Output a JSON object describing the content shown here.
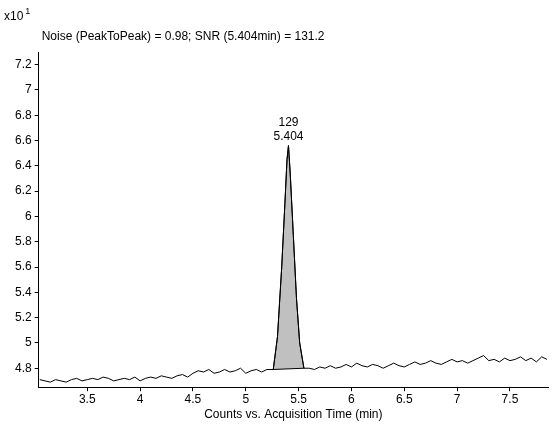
{
  "chart_data": {
    "type": "line",
    "title": "Noise (PeakToPeak) = 0.98; SNR (5.404min) = 131.2",
    "x_label": "Counts vs. Acquisition Time (min)",
    "y_multiplier": {
      "base": "x10",
      "exponent": "1"
    },
    "color": "#000000",
    "x": [
      3.05,
      3.1,
      3.15,
      3.2,
      3.25,
      3.3,
      3.35,
      3.4,
      3.45,
      3.5,
      3.55,
      3.6,
      3.65,
      3.7,
      3.75,
      3.8,
      3.85,
      3.9,
      3.95,
      4.0,
      4.05,
      4.1,
      4.15,
      4.2,
      4.25,
      4.3,
      4.35,
      4.4,
      4.45,
      4.5,
      4.55,
      4.6,
      4.65,
      4.7,
      4.75,
      4.8,
      4.85,
      4.9,
      4.95,
      5.0,
      5.05,
      5.1,
      5.15,
      5.2,
      5.26,
      5.3,
      5.34,
      5.37,
      5.39,
      5.404,
      5.42,
      5.45,
      5.48,
      5.51,
      5.55,
      5.6,
      5.65,
      5.7,
      5.75,
      5.8,
      5.85,
      5.9,
      5.95,
      6.0,
      6.05,
      6.1,
      6.15,
      6.2,
      6.25,
      6.3,
      6.35,
      6.4,
      6.45,
      6.5,
      6.55,
      6.6,
      6.65,
      6.7,
      6.75,
      6.8,
      6.85,
      6.9,
      6.95,
      7.0,
      7.05,
      7.1,
      7.15,
      7.2,
      7.25,
      7.3,
      7.35,
      7.4,
      7.45,
      7.5,
      7.55,
      7.6,
      7.65,
      7.7,
      7.75,
      7.8,
      7.85
    ],
    "values": [
      4.71,
      4.7,
      4.69,
      4.71,
      4.7,
      4.69,
      4.71,
      4.72,
      4.7,
      4.71,
      4.72,
      4.71,
      4.73,
      4.72,
      4.7,
      4.71,
      4.72,
      4.71,
      4.73,
      4.7,
      4.72,
      4.73,
      4.72,
      4.74,
      4.73,
      4.72,
      4.74,
      4.75,
      4.73,
      4.76,
      4.78,
      4.77,
      4.79,
      4.76,
      4.77,
      4.79,
      4.77,
      4.78,
      4.8,
      4.76,
      4.78,
      4.79,
      4.77,
      4.79,
      4.79,
      5.05,
      5.6,
      6.1,
      6.45,
      6.56,
      6.35,
      5.85,
      5.35,
      5.0,
      4.8,
      4.8,
      4.79,
      4.81,
      4.8,
      4.82,
      4.8,
      4.81,
      4.83,
      4.81,
      4.84,
      4.82,
      4.81,
      4.83,
      4.82,
      4.8,
      4.82,
      4.84,
      4.82,
      4.81,
      4.83,
      4.85,
      4.83,
      4.84,
      4.86,
      4.84,
      4.83,
      4.85,
      4.87,
      4.85,
      4.86,
      4.84,
      4.86,
      4.88,
      4.9,
      4.86,
      4.87,
      4.85,
      4.88,
      4.86,
      4.87,
      4.89,
      4.86,
      4.88,
      4.85,
      4.89,
      4.87
    ],
    "peak_fill": {
      "x": [
        5.26,
        5.55
      ],
      "color": "#c0c0c0"
    },
    "annotations": [
      {
        "x": 5.404,
        "y": 6.56,
        "text": [
          "129",
          "5.404"
        ]
      }
    ],
    "xlim": [
      3.04,
      7.86
    ],
    "ylim": [
      4.65,
      7.3
    ],
    "xticks": [
      3.5,
      4,
      4.5,
      5,
      5.5,
      6,
      6.5,
      7,
      7.5
    ],
    "yticks": [
      4.8,
      5,
      5.2,
      5.4,
      5.6,
      5.8,
      6,
      6.2,
      6.4,
      6.6,
      6.8,
      7,
      7.2
    ],
    "grid": false
  }
}
